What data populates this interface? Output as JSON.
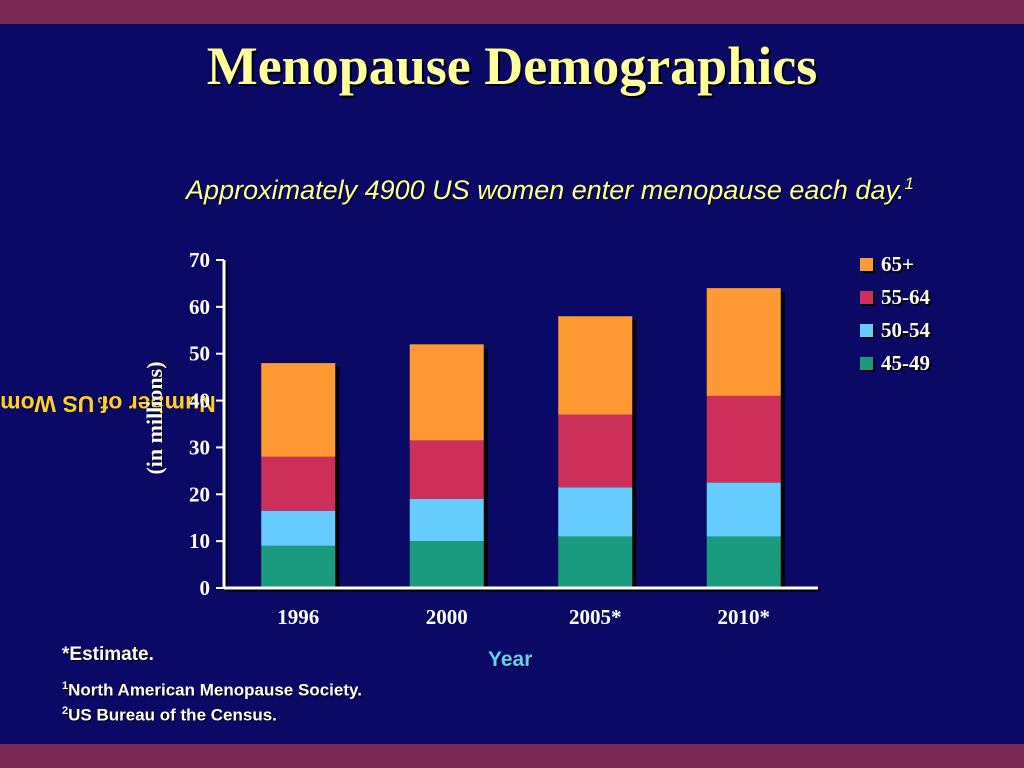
{
  "slide": {
    "title": "Menopause Demographics",
    "subtitle": "Approximately 4900 US women enter menopause each day.",
    "subtitle_sup": "1",
    "ylabel_main": "Number of US Women",
    "ylabel_sup": "2",
    "ylabel_units": "(in millions)",
    "footnote_estimate": "*Estimate.",
    "ref1_num": "1",
    "ref1_text": "North American Menopause Society.",
    "ref2_num": "2",
    "ref2_text": "US Bureau of the Census.",
    "colors": {
      "background": "#0a0a66",
      "band": "#7a2a52",
      "title": "#ffff99",
      "ylabel": "#ffcc33",
      "xtitle": "#66ccff"
    }
  },
  "chart_data": {
    "type": "bar",
    "stacked": true,
    "categories": [
      "1996",
      "2000",
      "2005*",
      "2010*"
    ],
    "series": [
      {
        "name": "45-49",
        "color": "#1a9a7e",
        "values": [
          9,
          10,
          11,
          11
        ]
      },
      {
        "name": "50-54",
        "color": "#66ccff",
        "values": [
          7.5,
          9,
          10.5,
          11.5
        ]
      },
      {
        "name": "55-64",
        "color": "#cc2f5a",
        "values": [
          11.5,
          12.5,
          15.5,
          18.5
        ]
      },
      {
        "name": "65+",
        "color": "#ff9933",
        "values": [
          20,
          20.5,
          21,
          23
        ]
      }
    ],
    "xlabel": "Year",
    "ylabel": "Number of US Women (in millions)",
    "ylim": [
      0,
      70
    ],
    "yticks": [
      0,
      10,
      20,
      30,
      40,
      50,
      60,
      70
    ],
    "legend_position": "right",
    "grid": false
  }
}
